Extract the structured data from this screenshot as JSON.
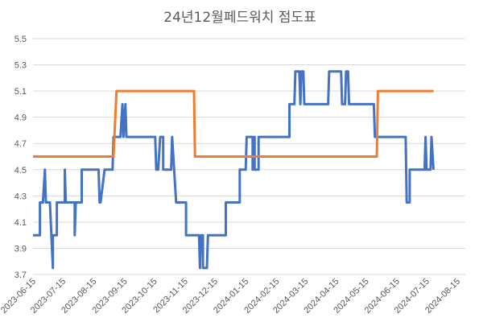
{
  "chart_data": {
    "type": "line",
    "title": "24년12월페드워치 점도표",
    "xlabel": "",
    "ylabel": "",
    "ylim": [
      3.7,
      5.5
    ],
    "yticks": [
      "3.7",
      "3.9",
      "4.1",
      "4.3",
      "4.5",
      "4.7",
      "4.9",
      "5.1",
      "5.3",
      "5.5"
    ],
    "xticks": [
      "2023-06-15",
      "2023-07-15",
      "2023-08-15",
      "2023-09-15",
      "2023-10-15",
      "2023-11-15",
      "2023-12-15",
      "2024-01-15",
      "2024-02-15",
      "2024-03-15",
      "2024-04-15",
      "2024-05-15",
      "2024-06-15",
      "2024-07-15",
      "2024-08-15"
    ],
    "x_range": [
      "2023-06-15",
      "2024-08-23"
    ],
    "grid": "horizontal",
    "legend": "none",
    "series": [
      {
        "color": "#4472c4",
        "points": [
          [
            "2023-06-15",
            4.0
          ],
          [
            "2023-06-21",
            4.0
          ],
          [
            "2023-06-22",
            4.0
          ],
          [
            "2023-06-22",
            4.25
          ],
          [
            "2023-06-25",
            4.25
          ],
          [
            "2023-06-27",
            4.5
          ],
          [
            "2023-06-28",
            4.25
          ],
          [
            "2023-07-02",
            4.25
          ],
          [
            "2023-07-05",
            3.75
          ],
          [
            "2023-07-05",
            4.0
          ],
          [
            "2023-07-09",
            4.0
          ],
          [
            "2023-07-09",
            4.25
          ],
          [
            "2023-07-17",
            4.25
          ],
          [
            "2023-07-17",
            4.5
          ],
          [
            "2023-07-18",
            4.25
          ],
          [
            "2023-07-27",
            4.25
          ],
          [
            "2023-07-27",
            4.0
          ],
          [
            "2023-07-28",
            4.25
          ],
          [
            "2023-08-03",
            4.25
          ],
          [
            "2023-08-03",
            4.5
          ],
          [
            "2023-08-11",
            4.5
          ],
          [
            "2023-08-11",
            4.5
          ],
          [
            "2023-08-20",
            4.5
          ],
          [
            "2023-08-21",
            4.25
          ],
          [
            "2023-08-22",
            4.25
          ],
          [
            "2023-08-26",
            4.5
          ],
          [
            "2023-09-03",
            4.5
          ],
          [
            "2023-09-04",
            4.75
          ],
          [
            "2023-09-10",
            4.75
          ],
          [
            "2023-09-11",
            4.75
          ],
          [
            "2023-09-13",
            5.0
          ],
          [
            "2023-09-14",
            4.75
          ],
          [
            "2023-09-16",
            5.0
          ],
          [
            "2023-09-17",
            4.75
          ],
          [
            "2023-10-16",
            4.75
          ],
          [
            "2023-10-17",
            4.5
          ],
          [
            "2023-10-19",
            4.5
          ],
          [
            "2023-10-21",
            4.75
          ],
          [
            "2023-10-24",
            4.75
          ],
          [
            "2023-10-24",
            4.5
          ],
          [
            "2023-11-01",
            4.5
          ],
          [
            "2023-11-02",
            4.75
          ],
          [
            "2023-11-04",
            4.5
          ],
          [
            "2023-11-06",
            4.25
          ],
          [
            "2023-11-16",
            4.25
          ],
          [
            "2023-11-16",
            4.0
          ],
          [
            "2023-11-29",
            4.0
          ],
          [
            "2023-11-30",
            3.75
          ],
          [
            "2023-12-01",
            4.0
          ],
          [
            "2023-12-03",
            4.0
          ],
          [
            "2023-12-03",
            3.75
          ],
          [
            "2023-12-07",
            3.75
          ],
          [
            "2023-12-08",
            4.0
          ],
          [
            "2023-12-26",
            4.0
          ],
          [
            "2023-12-26",
            4.25
          ],
          [
            "2024-01-09",
            4.25
          ],
          [
            "2024-01-09",
            4.5
          ],
          [
            "2024-01-15",
            4.5
          ],
          [
            "2024-01-16",
            4.75
          ],
          [
            "2024-01-22",
            4.75
          ],
          [
            "2024-01-22",
            4.5
          ],
          [
            "2024-01-24",
            4.75
          ],
          [
            "2024-01-24",
            4.5
          ],
          [
            "2024-01-28",
            4.5
          ],
          [
            "2024-01-28",
            4.75
          ],
          [
            "2024-02-28",
            4.75
          ],
          [
            "2024-02-28",
            5.0
          ],
          [
            "2024-03-04",
            5.0
          ],
          [
            "2024-03-05",
            5.25
          ],
          [
            "2024-03-09",
            5.25
          ],
          [
            "2024-03-10",
            5.0
          ],
          [
            "2024-03-11",
            5.25
          ],
          [
            "2024-03-13",
            5.25
          ],
          [
            "2024-03-14",
            5.0
          ],
          [
            "2024-04-07",
            5.0
          ],
          [
            "2024-04-08",
            5.25
          ],
          [
            "2024-04-20",
            5.25
          ],
          [
            "2024-04-21",
            5.0
          ],
          [
            "2024-04-24",
            5.0
          ],
          [
            "2024-04-25",
            5.25
          ],
          [
            "2024-04-27",
            5.25
          ],
          [
            "2024-04-28",
            5.0
          ],
          [
            "2024-05-23",
            5.0
          ],
          [
            "2024-05-24",
            4.75
          ],
          [
            "2024-06-24",
            4.75
          ],
          [
            "2024-06-25",
            4.25
          ],
          [
            "2024-06-28",
            4.25
          ],
          [
            "2024-06-28",
            4.5
          ],
          [
            "2024-07-13",
            4.5
          ],
          [
            "2024-07-14",
            4.75
          ],
          [
            "2024-07-15",
            4.5
          ],
          [
            "2024-07-19",
            4.5
          ],
          [
            "2024-07-20",
            4.75
          ],
          [
            "2024-07-22",
            4.5
          ]
        ]
      },
      {
        "color": "#ed7d31",
        "points": [
          [
            "2023-06-15",
            4.6
          ],
          [
            "2023-09-04",
            4.6
          ],
          [
            "2023-09-07",
            5.1
          ],
          [
            "2023-11-24",
            5.1
          ],
          [
            "2023-11-25",
            4.6
          ],
          [
            "2024-05-26",
            4.6
          ],
          [
            "2024-05-27",
            5.1
          ],
          [
            "2024-07-22",
            5.1
          ]
        ]
      }
    ]
  }
}
